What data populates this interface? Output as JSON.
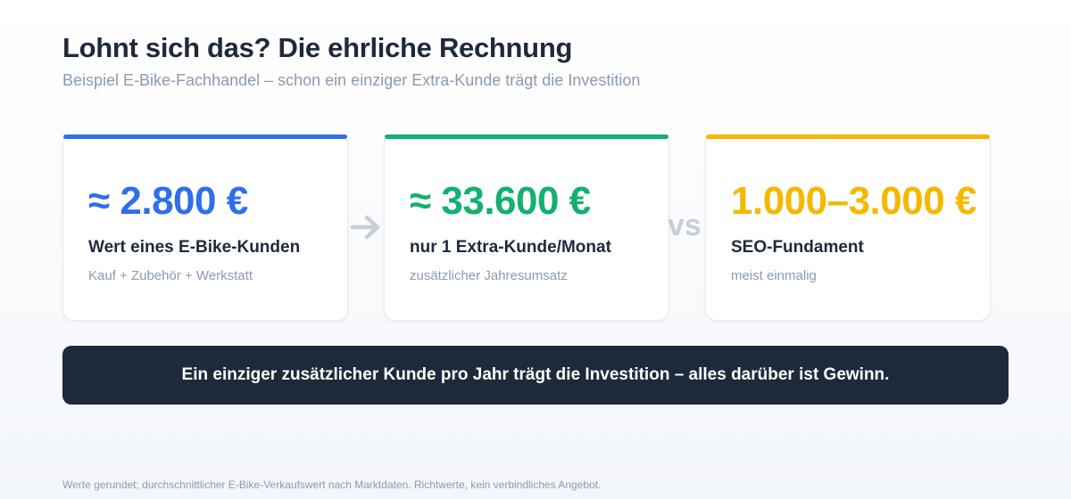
{
  "header": {
    "title": "Lohnt sich das? Die ehrliche Rechnung",
    "subtitle": "Beispiel E-Bike-Fachhandel – schon ein einziger Extra-Kunde trägt die Investition"
  },
  "cards": [
    {
      "value": "≈ 2.800 €",
      "label": "Wert eines E-Bike-Kunden",
      "note": "Kauf + Zubehör + Werkstatt",
      "accent_color": "#2f6fea"
    },
    {
      "value": "≈ 33.600 €",
      "label": "nur 1 Extra-Kunde/Monat",
      "note": "zusätzlicher Jahresumsatz",
      "accent_color": "#12b16f"
    },
    {
      "value": "1.000–3.000 €",
      "label": "SEO-Fundament",
      "note": "meist einmalig",
      "accent_color": "#f5b800"
    }
  ],
  "connectors": {
    "arrow_icon": "arrow-right-icon",
    "vs_label": "vs"
  },
  "banner": {
    "text": "Ein einziger zusätzlicher Kunde pro Jahr trägt die Investition – alles darüber ist Gewinn."
  },
  "footnote": "Werte gerundet; durchschnittlicher E-Bike-Verkaufswert nach Marktdaten. Richtwerte, kein verbindliches Angebot.",
  "colors": {
    "title": "#1e2a3b",
    "muted": "#8a9bb0",
    "banner_bg": "#1e2a3b",
    "connector": "#c5ced9"
  }
}
